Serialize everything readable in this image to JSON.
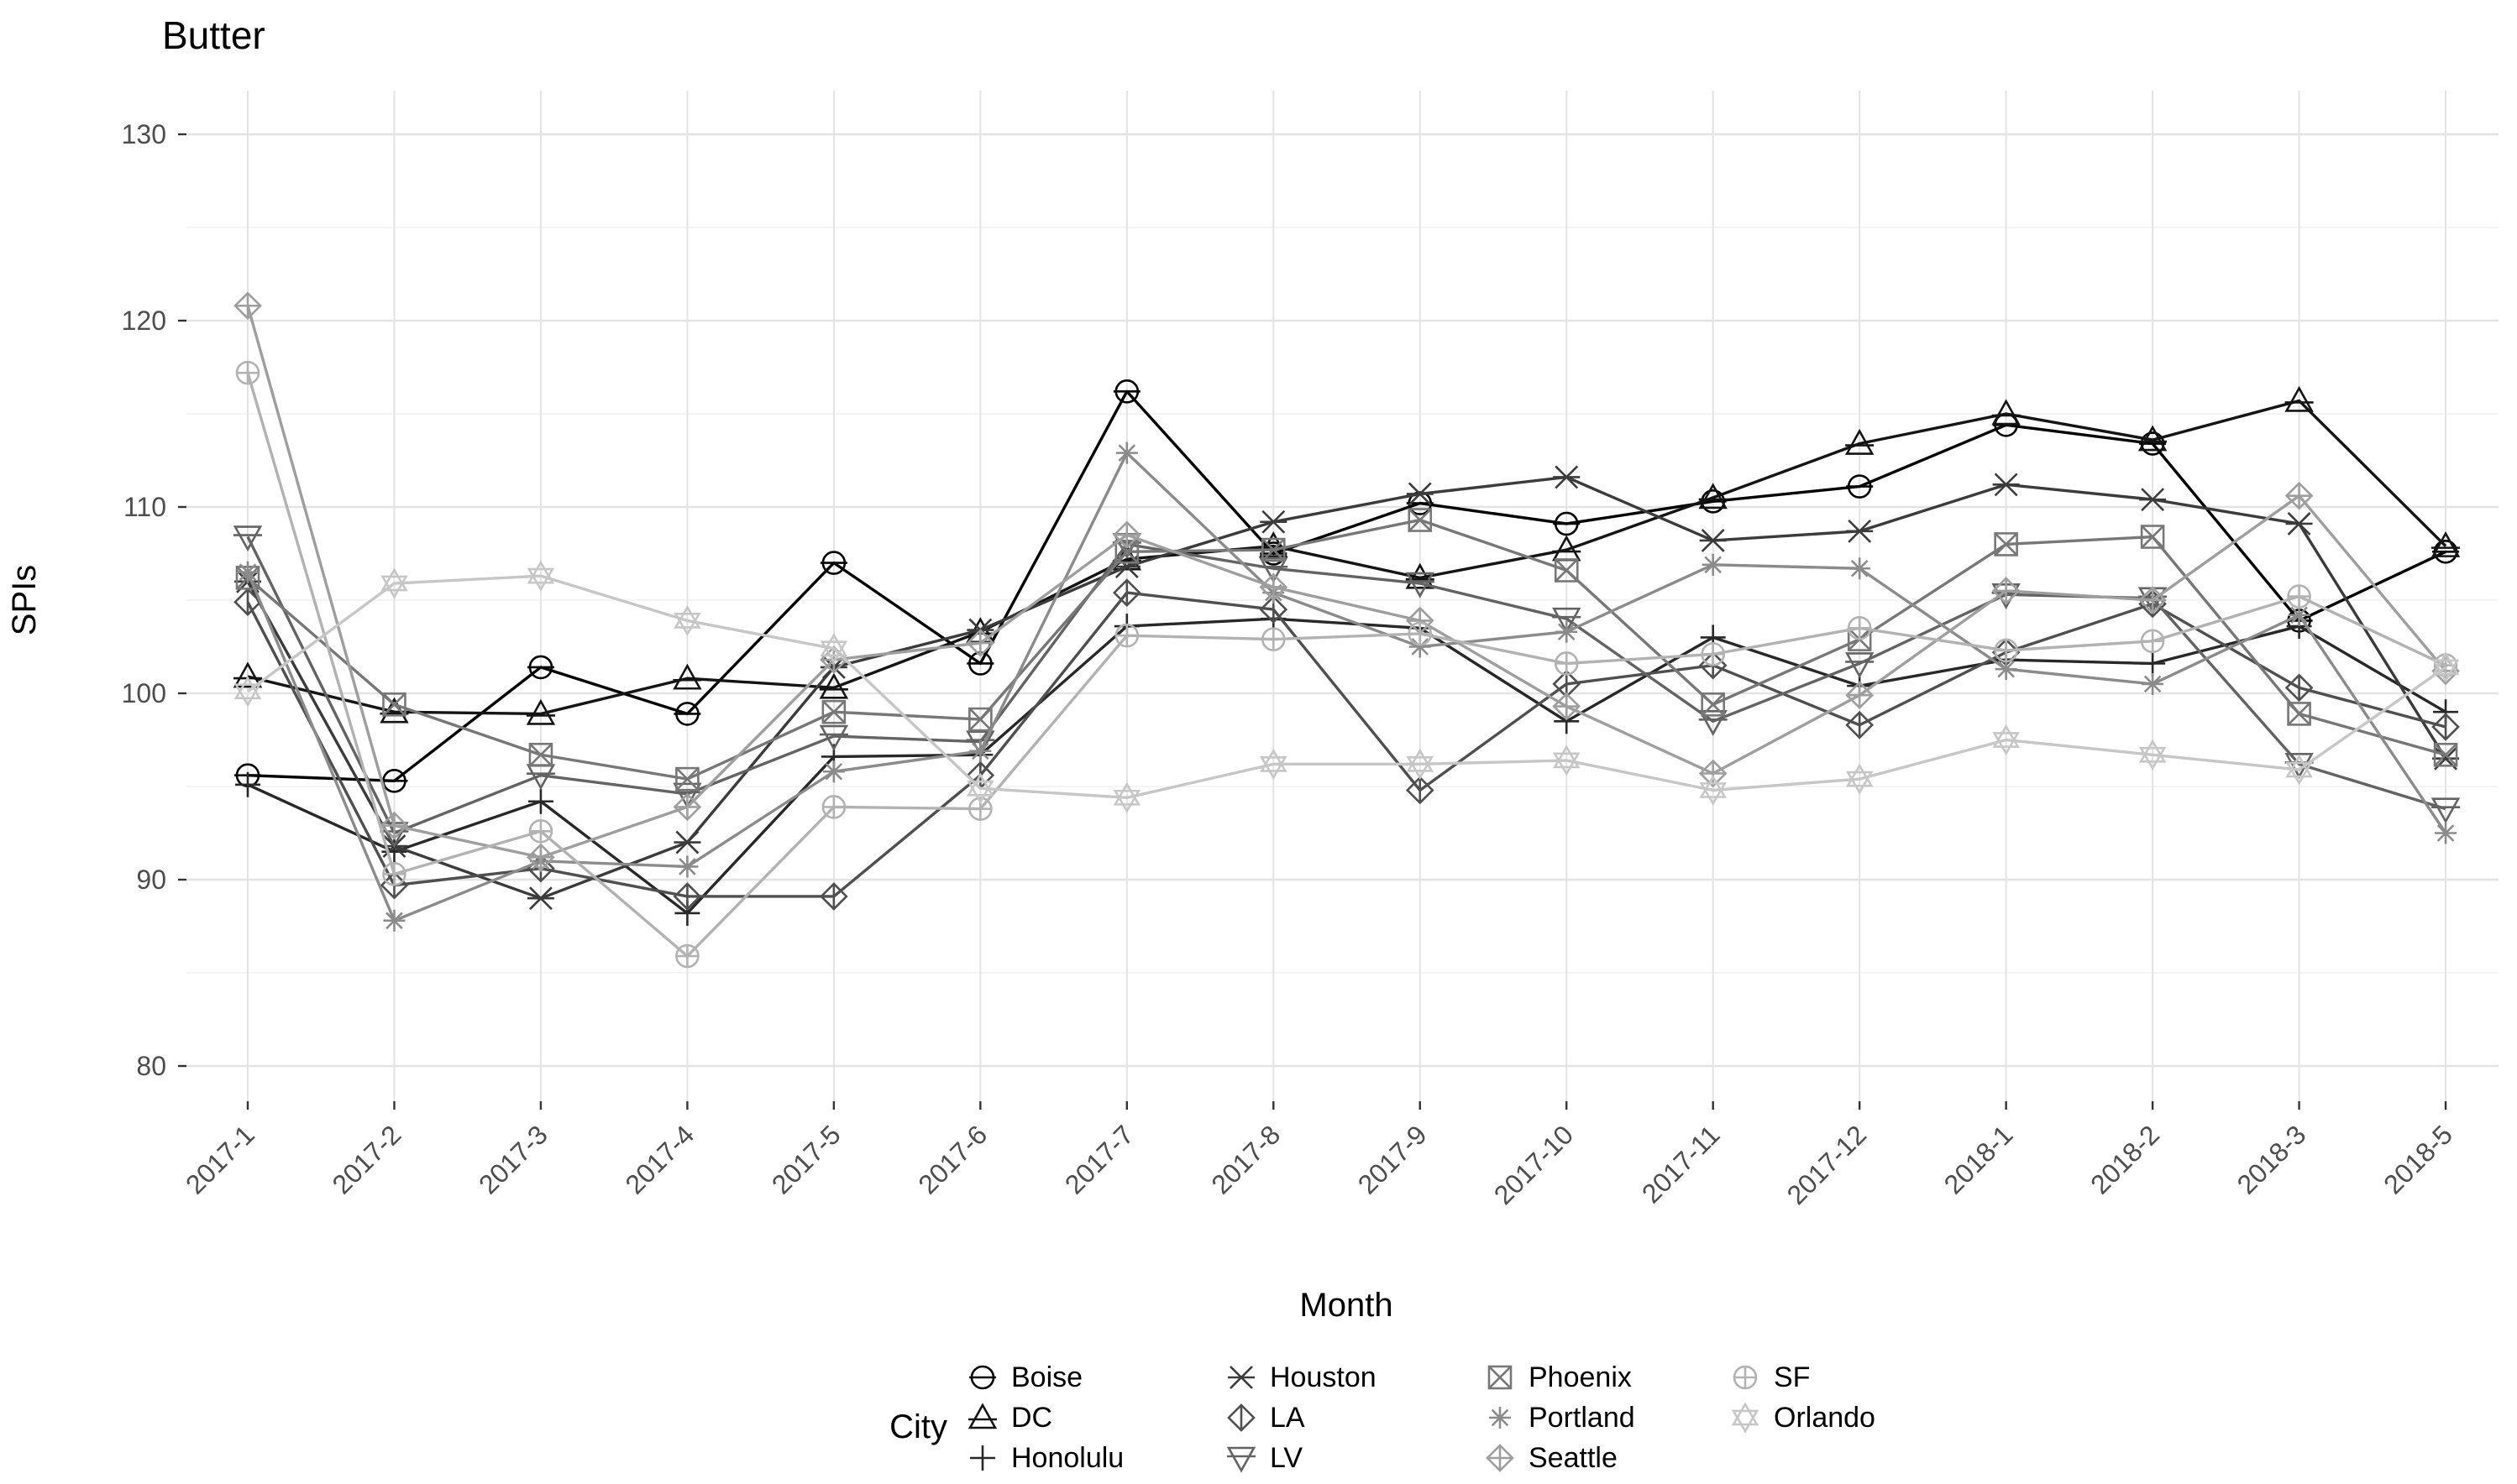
{
  "title": "Butter",
  "axes": {
    "x_label": "Month",
    "y_label": "SPIs",
    "y_ticks": [
      80,
      90,
      100,
      110,
      120,
      130
    ],
    "y_minor": [
      85,
      95,
      105,
      115,
      125
    ],
    "tick_color": "#4d4d4d",
    "grid_major_color": "#e3e3e3",
    "grid_minor_color": "#f1f1f1"
  },
  "legend": {
    "title": "City"
  },
  "chart_data": {
    "type": "line",
    "title": "Butter",
    "xlabel": "Month",
    "ylabel": "SPIs",
    "ylim": [
      76,
      133
    ],
    "grid": true,
    "legend_position": "bottom",
    "categories": [
      "2017-1",
      "2017-2",
      "2017-3",
      "2017-4",
      "2017-5",
      "2017-6",
      "2017-7",
      "2017-8",
      "2017-9",
      "2017-10",
      "2017-11",
      "2017-12",
      "2018-1",
      "2018-2",
      "2018-3",
      "2018-5"
    ],
    "series": [
      {
        "name": "Boise",
        "color": "#000000",
        "marker": "circle-bar",
        "values": [
          95.6,
          95.3,
          101.4,
          98.9,
          107.0,
          101.6,
          116.2,
          107.5,
          110.2,
          109.1,
          110.3,
          111.1,
          114.4,
          113.4,
          103.9,
          107.6
        ]
      },
      {
        "name": "DC",
        "color": "#141414",
        "marker": "triangle-bar",
        "values": [
          100.9,
          99.0,
          98.9,
          100.8,
          100.3,
          103.3,
          107.2,
          107.9,
          106.2,
          107.7,
          110.5,
          113.4,
          115.0,
          113.6,
          115.7,
          107.9
        ]
      },
      {
        "name": "Honolulu",
        "color": "#282828",
        "marker": "plus",
        "values": [
          95.1,
          91.5,
          94.2,
          88.2,
          96.6,
          96.7,
          103.6,
          104.0,
          103.5,
          98.5,
          103.0,
          100.4,
          101.8,
          101.6,
          103.6,
          99.0
        ]
      },
      {
        "name": "Houston",
        "color": "#3b3b3b",
        "marker": "x-bar",
        "values": [
          106.0,
          91.8,
          89.0,
          92.0,
          101.4,
          103.4,
          106.8,
          109.2,
          110.7,
          111.6,
          108.2,
          108.7,
          111.2,
          110.4,
          109.1,
          96.5
        ]
      },
      {
        "name": "LA",
        "color": "#4f4f4f",
        "marker": "diamond-bar",
        "values": [
          104.9,
          89.7,
          90.6,
          89.1,
          89.1,
          95.6,
          105.4,
          104.5,
          94.8,
          100.5,
          101.5,
          98.3,
          102.2,
          104.8,
          100.3,
          98.2
        ]
      },
      {
        "name": "LV",
        "color": "#636363",
        "marker": "tridown-bar",
        "values": [
          108.4,
          92.5,
          95.6,
          94.6,
          97.7,
          97.4,
          108.0,
          106.7,
          105.9,
          104.0,
          98.5,
          101.6,
          105.3,
          105.1,
          96.2,
          93.8
        ]
      },
      {
        "name": "Phoenix",
        "color": "#777777",
        "marker": "square-x",
        "values": [
          106.2,
          99.4,
          96.7,
          95.4,
          99.0,
          98.6,
          107.6,
          107.7,
          109.3,
          106.6,
          99.4,
          102.9,
          108.0,
          108.4,
          98.9,
          96.7
        ]
      },
      {
        "name": "Portland",
        "color": "#8b8b8b",
        "marker": "asterisk",
        "values": [
          106.5,
          87.8,
          91.0,
          90.7,
          95.8,
          96.9,
          112.9,
          105.4,
          102.5,
          103.3,
          106.9,
          106.7,
          101.3,
          100.5,
          104.2,
          92.5
        ]
      },
      {
        "name": "Seattle",
        "color": "#9e9e9e",
        "marker": "diamond-plus",
        "values": [
          120.8,
          92.9,
          91.2,
          93.9,
          101.8,
          102.7,
          108.5,
          105.7,
          103.9,
          99.3,
          95.7,
          99.9,
          105.5,
          105.0,
          110.6,
          101.2
        ]
      },
      {
        "name": "SF",
        "color": "#b2b2b2",
        "marker": "circle-plus",
        "values": [
          117.2,
          90.3,
          92.6,
          85.9,
          93.9,
          93.8,
          103.1,
          102.9,
          103.2,
          101.6,
          102.1,
          103.5,
          102.3,
          102.8,
          105.2,
          101.5
        ]
      },
      {
        "name": "Orlando",
        "color": "#c6c6c6",
        "marker": "hexagram",
        "values": [
          100.1,
          105.9,
          106.3,
          103.9,
          102.4,
          94.9,
          94.4,
          96.2,
          96.2,
          96.4,
          94.8,
          95.4,
          97.5,
          96.7,
          95.9,
          101.4
        ]
      }
    ]
  }
}
